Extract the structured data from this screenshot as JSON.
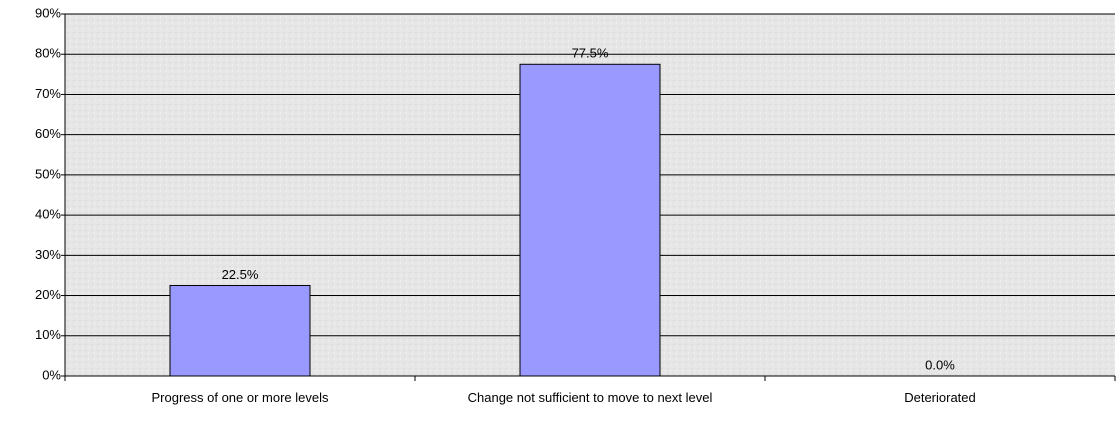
{
  "chart_data": {
    "type": "bar",
    "categories": [
      "Progress of one or more levels",
      "Change not sufficient to move to next level",
      "Deteriorated"
    ],
    "values": [
      22.5,
      77.5,
      0.0
    ],
    "value_labels": [
      "22.5%",
      "77.5%",
      "0.0%"
    ],
    "color": "#9999ff",
    "ylim": [
      0,
      90
    ],
    "yticks": [
      {
        "value": 0,
        "label": "0%"
      },
      {
        "value": 10,
        "label": "10%"
      },
      {
        "value": 20,
        "label": "20%"
      },
      {
        "value": 30,
        "label": "30%"
      },
      {
        "value": 40,
        "label": "40%"
      },
      {
        "value": 50,
        "label": "50%"
      },
      {
        "value": 60,
        "label": "60%"
      },
      {
        "value": 70,
        "label": "70%"
      },
      {
        "value": 80,
        "label": "80%"
      },
      {
        "value": 90,
        "label": "90%"
      }
    ],
    "grid": true
  }
}
